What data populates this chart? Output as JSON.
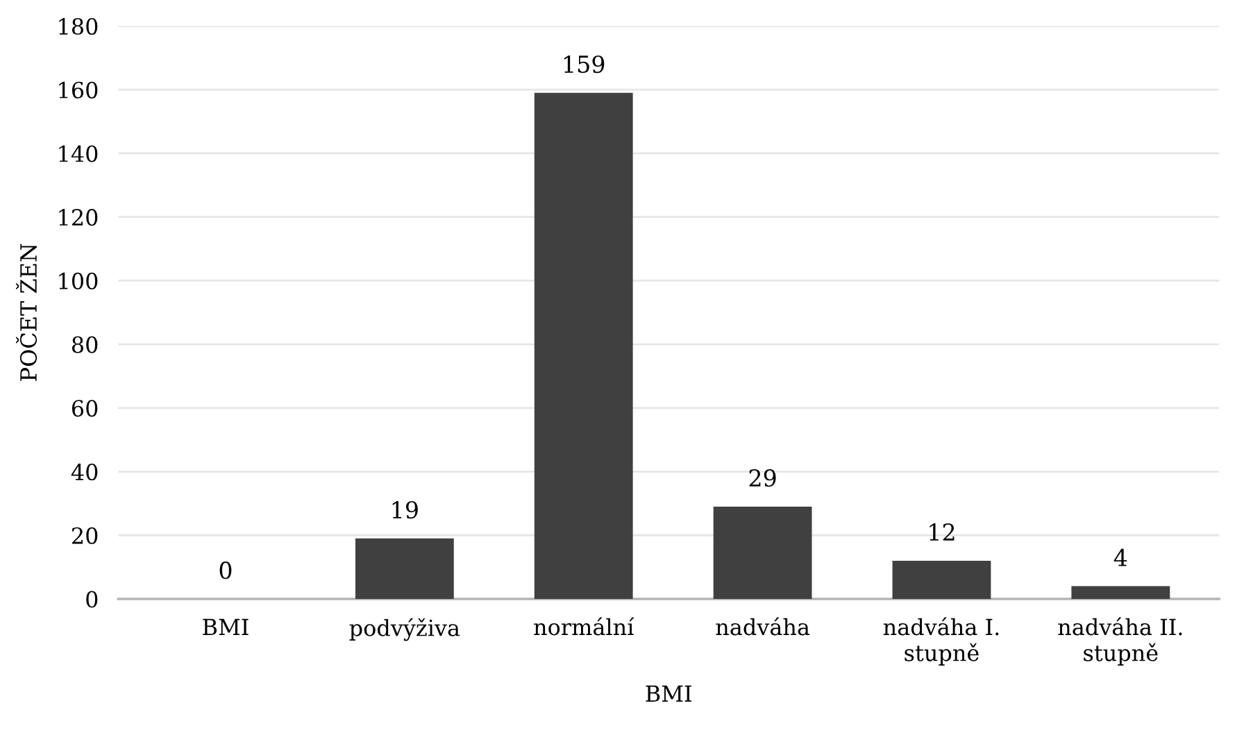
{
  "chart_data": {
    "type": "bar",
    "xlabel": "BMI",
    "ylabel": "POČET ŽEN",
    "categories": [
      "BMI",
      "podvýživa",
      "normální",
      "nadváha",
      "nadváha I. stupně",
      "nadváha II. stupně"
    ],
    "values": [
      0,
      19,
      159,
      29,
      12,
      4
    ],
    "color": "#404040",
    "ylim": [
      0,
      180
    ],
    "yticks": [
      0,
      20,
      40,
      60,
      80,
      100,
      120,
      140,
      160,
      180
    ],
    "grid": "y",
    "data_labels": true,
    "legend": false
  }
}
